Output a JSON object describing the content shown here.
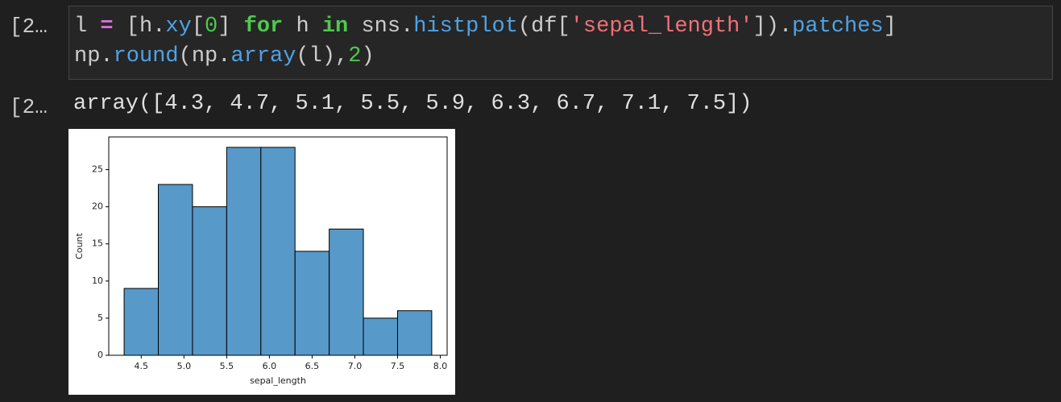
{
  "cells": [
    {
      "prompt": "[2…",
      "code": [
        [
          {
            "text": "l ",
            "color": "#cccccc"
          },
          {
            "text": "=",
            "color": "#d670d6",
            "bold": true
          },
          {
            "text": " [h.",
            "color": "#cccccc"
          },
          {
            "text": "xy",
            "color": "#4fa3e6"
          },
          {
            "text": "[",
            "color": "#cccccc"
          },
          {
            "text": "0",
            "color": "#4ec94e"
          },
          {
            "text": "] ",
            "color": "#cccccc"
          },
          {
            "text": "for",
            "color": "#4ec94e",
            "bold": true
          },
          {
            "text": " h ",
            "color": "#cccccc"
          },
          {
            "text": "in",
            "color": "#4ec94e",
            "bold": true
          },
          {
            "text": " sns.",
            "color": "#cccccc"
          },
          {
            "text": "histplot",
            "color": "#4fa3e6"
          },
          {
            "text": "(df[",
            "color": "#cccccc"
          },
          {
            "text": "'sepal_length'",
            "color": "#f07178"
          },
          {
            "text": "]).",
            "color": "#cccccc"
          },
          {
            "text": "patches",
            "color": "#4fa3e6"
          },
          {
            "text": "]",
            "color": "#cccccc"
          }
        ],
        [
          {
            "text": "np.",
            "color": "#cccccc"
          },
          {
            "text": "round",
            "color": "#4fa3e6"
          },
          {
            "text": "(np.",
            "color": "#cccccc"
          },
          {
            "text": "array",
            "color": "#4fa3e6"
          },
          {
            "text": "(l),",
            "color": "#cccccc"
          },
          {
            "text": "2",
            "color": "#4ec94e"
          },
          {
            "text": ")",
            "color": "#cccccc"
          }
        ]
      ]
    },
    {
      "prompt": "[2…",
      "output": "array([4.3, 4.7, 5.1, 5.5, 5.9, 6.3, 6.7, 7.1, 7.5])"
    }
  ],
  "chart_data": {
    "type": "histogram",
    "xlabel": "sepal_length",
    "ylabel": "Count",
    "bins": [
      4.3,
      4.7,
      5.1,
      5.5,
      5.9,
      6.3,
      6.7,
      7.1,
      7.5,
      7.9
    ],
    "values": [
      9,
      23,
      20,
      28,
      28,
      14,
      17,
      5,
      6
    ],
    "color": "#5799c9",
    "xlim": [
      4.12,
      8.08
    ],
    "ylim": [
      0,
      29.4
    ],
    "xticks": [
      4.5,
      {
        "value": 5,
        "label": "5.0"
      },
      5.5,
      {
        "value": 6,
        "label": "6.0"
      },
      6.5,
      {
        "value": 7,
        "label": "7.0"
      },
      7.5,
      {
        "value": 8,
        "label": "8.0"
      }
    ],
    "yticks": [
      0,
      5,
      10,
      15,
      20,
      25
    ]
  }
}
